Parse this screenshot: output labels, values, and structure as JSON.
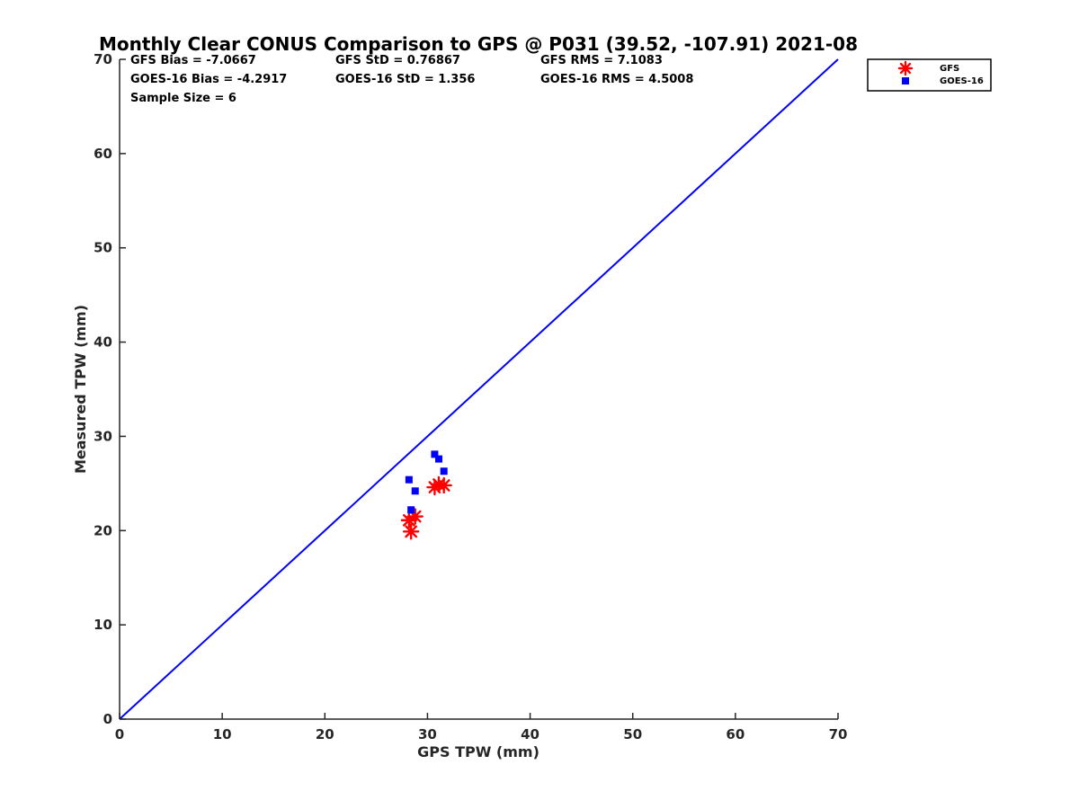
{
  "chart_data": {
    "type": "scatter",
    "title": "Monthly Clear CONUS Comparison to GPS @ P031 (39.52, -107.91) 2021-08",
    "xlabel": "GPS TPW (mm)",
    "ylabel": "Measured TPW (mm)",
    "xlim": [
      0,
      70
    ],
    "ylim": [
      0,
      70
    ],
    "xticks": [
      0,
      10,
      20,
      30,
      40,
      50,
      60,
      70
    ],
    "yticks": [
      0,
      10,
      20,
      30,
      40,
      50,
      60,
      70
    ],
    "grid": false,
    "legend_position": "top-right outside",
    "stats": [
      [
        "GFS Bias = -7.0667",
        "GFS StD = 0.76867",
        "GFS RMS = 7.1083"
      ],
      [
        "GOES-16 Bias = -4.2917",
        "GOES-16 StD = 1.356",
        "GOES-16 RMS = 4.5008"
      ],
      [
        "Sample Size = 6"
      ]
    ],
    "reference_line": {
      "x": [
        0,
        70
      ],
      "y": [
        0,
        70
      ],
      "color": "#0000ff"
    },
    "series": [
      {
        "name": "GFS",
        "marker": "asterisk",
        "color": "#ff0000",
        "points": [
          [
            28.2,
            21.1
          ],
          [
            28.4,
            19.9
          ],
          [
            28.8,
            21.5
          ],
          [
            30.7,
            24.6
          ],
          [
            31.1,
            24.9
          ],
          [
            31.6,
            24.8
          ]
        ]
      },
      {
        "name": "GOES-16",
        "marker": "square",
        "color": "#0000ff",
        "points": [
          [
            28.2,
            25.4
          ],
          [
            28.4,
            22.2
          ],
          [
            28.8,
            24.2
          ],
          [
            30.7,
            28.1
          ],
          [
            31.1,
            27.6
          ],
          [
            31.6,
            26.3
          ]
        ]
      }
    ]
  }
}
